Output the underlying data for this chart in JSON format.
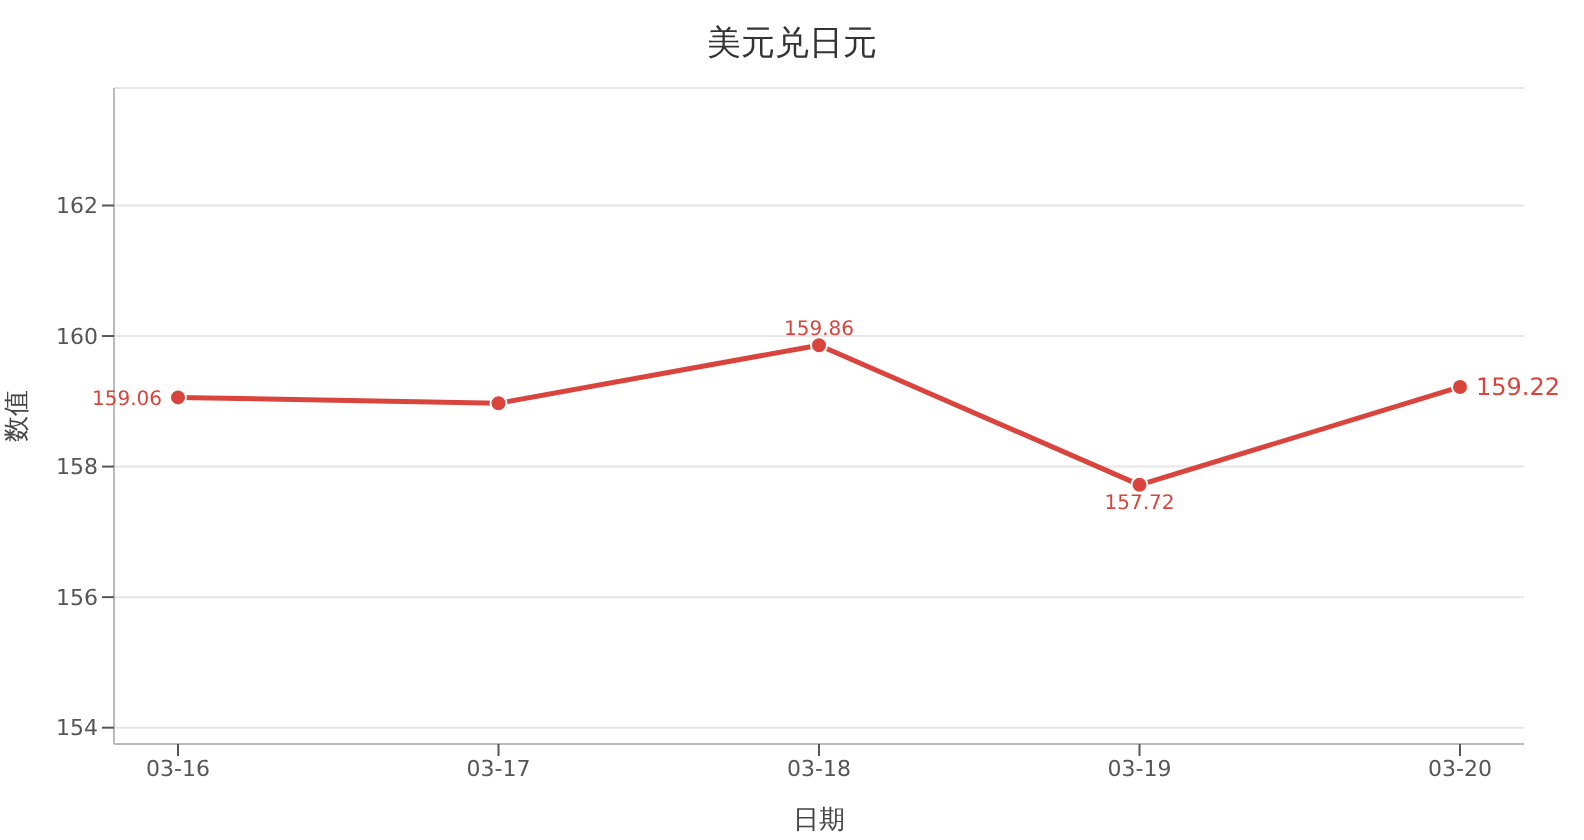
{
  "chart_data": {
    "type": "line",
    "title": "美元兑日元",
    "xlabel": "日期",
    "ylabel": "数值",
    "categories": [
      "03-16",
      "03-17",
      "03-18",
      "03-19",
      "03-20"
    ],
    "series": [
      {
        "color": "#d9453d",
        "values": [
          159.06,
          158.97,
          159.86,
          157.72,
          159.22
        ],
        "value_labels": [
          "159.06",
          null,
          "159.86",
          "157.72",
          "159.22"
        ]
      }
    ],
    "ylim": [
      153.75,
      163.8
    ],
    "yticks": [
      154,
      156,
      158,
      160,
      162
    ],
    "grid": "y",
    "marker": "circle",
    "line_style": "solid"
  }
}
